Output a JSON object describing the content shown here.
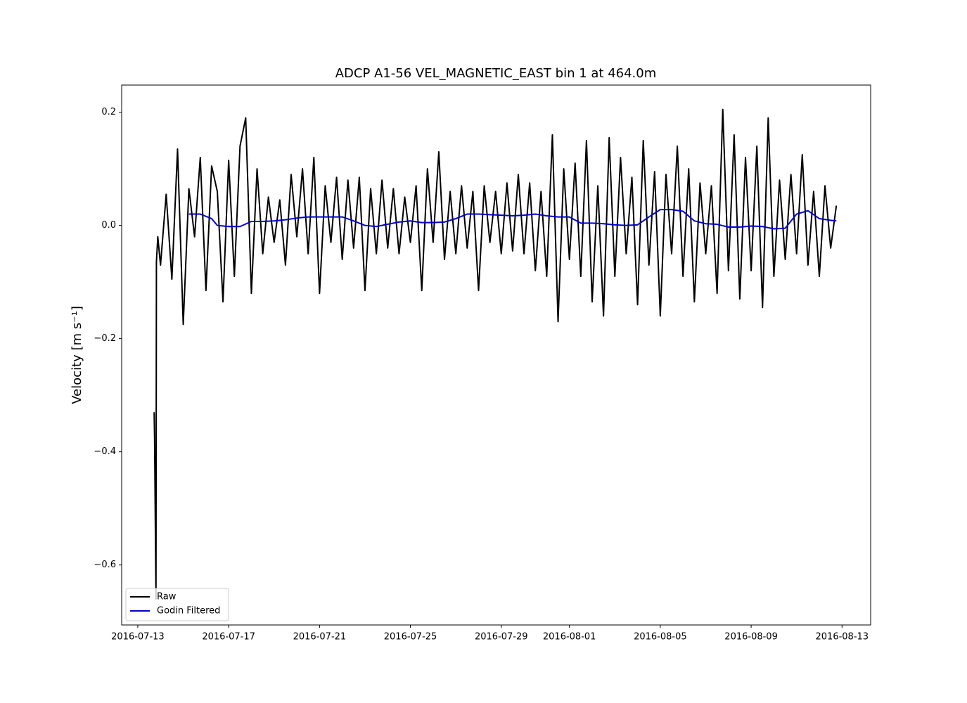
{
  "chart_data": {
    "type": "line",
    "title": "ADCP A1-56 VEL_MAGNETIC_EAST bin 1 at 464.0m",
    "y_label": "Velocity [m s⁻¹]",
    "xlim": [
      -0.71,
      32.26
    ],
    "ylim": [
      -0.706,
      0.248
    ],
    "xticks": [
      {
        "value": 0,
        "label": "2016-07-13"
      },
      {
        "value": 4,
        "label": "2016-07-17"
      },
      {
        "value": 8,
        "label": "2016-07-21"
      },
      {
        "value": 12,
        "label": "2016-07-25"
      },
      {
        "value": 16,
        "label": "2016-07-29"
      },
      {
        "value": 19,
        "label": "2016-08-01"
      },
      {
        "value": 23,
        "label": "2016-08-05"
      },
      {
        "value": 27,
        "label": "2016-08-09"
      },
      {
        "value": 31,
        "label": "2016-08-13"
      }
    ],
    "yticks": [
      {
        "value": -0.6,
        "label": "−0.6"
      },
      {
        "value": -0.4,
        "label": "−0.4"
      },
      {
        "value": -0.2,
        "label": "−0.2"
      },
      {
        "value": 0,
        "label": "0.0"
      },
      0.2
    ],
    "legend": "lower left",
    "series": [
      {
        "name": "Raw",
        "color": "#000000",
        "x": [
          0.72,
          0.74,
          0.8,
          0.82,
          0.88,
          1.0,
          1.25,
          1.5,
          1.75,
          2.0,
          2.25,
          2.5,
          2.75,
          3.0,
          3.25,
          3.5,
          3.75,
          4.0,
          4.25,
          4.5,
          4.75,
          5.0,
          5.25,
          5.5,
          5.75,
          6.0,
          6.25,
          6.5,
          6.75,
          7.0,
          7.25,
          7.5,
          7.75,
          8.0,
          8.25,
          8.5,
          8.75,
          9.0,
          9.25,
          9.5,
          9.75,
          10.0,
          10.25,
          10.5,
          10.75,
          11.0,
          11.25,
          11.5,
          11.75,
          12.0,
          12.25,
          12.5,
          12.75,
          13.0,
          13.25,
          13.5,
          13.75,
          14.0,
          14.25,
          14.5,
          14.75,
          15.0,
          15.25,
          15.5,
          15.75,
          16.0,
          16.25,
          16.5,
          16.75,
          17.0,
          17.25,
          17.5,
          17.75,
          18.0,
          18.25,
          18.5,
          18.75,
          19.0,
          19.25,
          19.5,
          19.75,
          20.0,
          20.25,
          20.5,
          20.75,
          21.0,
          21.25,
          21.5,
          21.75,
          22.0,
          22.25,
          22.5,
          22.75,
          23.0,
          23.25,
          23.5,
          23.75,
          24.0,
          24.25,
          24.5,
          24.75,
          25.0,
          25.25,
          25.5,
          25.75,
          26.0,
          26.25,
          26.5,
          26.75,
          27.0,
          27.25,
          27.5,
          27.75,
          28.0,
          28.25,
          28.5,
          28.75,
          29.0,
          29.25,
          29.5,
          29.75,
          30.0,
          30.25,
          30.5,
          30.75
        ],
        "values": [
          -0.33,
          -0.38,
          -0.66,
          -0.065,
          -0.02,
          -0.07,
          0.055,
          -0.095,
          0.135,
          -0.175,
          0.065,
          -0.02,
          0.12,
          -0.115,
          0.105,
          0.06,
          -0.135,
          0.115,
          -0.09,
          0.14,
          0.19,
          -0.12,
          0.1,
          -0.05,
          0.05,
          -0.03,
          0.045,
          -0.07,
          0.09,
          -0.02,
          0.1,
          -0.05,
          0.12,
          -0.12,
          0.07,
          -0.03,
          0.085,
          -0.06,
          0.08,
          -0.04,
          0.085,
          -0.115,
          0.065,
          -0.05,
          0.08,
          -0.04,
          0.065,
          -0.05,
          0.05,
          -0.03,
          0.07,
          -0.115,
          0.1,
          -0.03,
          0.13,
          -0.06,
          0.06,
          -0.05,
          0.07,
          -0.04,
          0.06,
          -0.115,
          0.07,
          -0.03,
          0.06,
          -0.05,
          0.075,
          -0.045,
          0.09,
          -0.05,
          0.075,
          -0.08,
          0.06,
          -0.09,
          0.16,
          -0.17,
          0.1,
          -0.06,
          0.11,
          -0.09,
          0.15,
          -0.135,
          0.07,
          -0.16,
          0.155,
          -0.09,
          0.12,
          -0.05,
          0.085,
          -0.14,
          0.15,
          -0.07,
          0.095,
          -0.16,
          0.09,
          -0.05,
          0.14,
          -0.09,
          0.1,
          -0.135,
          0.075,
          -0.05,
          0.07,
          -0.12,
          0.205,
          -0.08,
          0.16,
          -0.13,
          0.12,
          -0.08,
          0.14,
          -0.145,
          0.19,
          -0.09,
          0.08,
          -0.06,
          0.09,
          -0.05,
          0.125,
          -0.07,
          0.06,
          -0.09,
          0.07,
          -0.04,
          0.035
        ]
      },
      {
        "name": "Godin Filtered",
        "color": "#0000cc",
        "x": [
          2.25,
          2.75,
          3.25,
          3.5,
          4,
          4.5,
          5,
          5.5,
          6,
          6.5,
          7,
          7.5,
          8,
          8.5,
          9,
          9.5,
          10,
          10.5,
          11,
          11.5,
          12,
          12.5,
          13,
          13.5,
          14,
          14.5,
          15,
          15.5,
          16,
          16.5,
          17,
          17.5,
          18,
          18.5,
          19,
          19.5,
          20,
          20.5,
          21,
          21.5,
          22,
          22.5,
          23,
          23.5,
          24,
          24.5,
          25,
          25.5,
          26,
          26.5,
          27,
          27.5,
          28,
          28.5,
          29,
          29.5,
          30,
          30.5,
          30.75
        ],
        "values": [
          0.02,
          0.02,
          0.012,
          0.0,
          -0.002,
          -0.002,
          0.007,
          0.007,
          0.008,
          0.01,
          0.013,
          0.015,
          0.015,
          0.015,
          0.015,
          0.008,
          0.0,
          -0.002,
          0.002,
          0.006,
          0.008,
          0.005,
          0.005,
          0.006,
          0.012,
          0.02,
          0.02,
          0.019,
          0.018,
          0.017,
          0.018,
          0.02,
          0.017,
          0.015,
          0.015,
          0.004,
          0.004,
          0.003,
          0.001,
          0.0,
          0.001,
          0.015,
          0.028,
          0.028,
          0.025,
          0.008,
          0.003,
          0.002,
          -0.003,
          -0.003,
          -0.001,
          -0.002,
          -0.006,
          -0.005,
          0.02,
          0.026,
          0.012,
          0.009,
          0.008
        ]
      }
    ]
  }
}
